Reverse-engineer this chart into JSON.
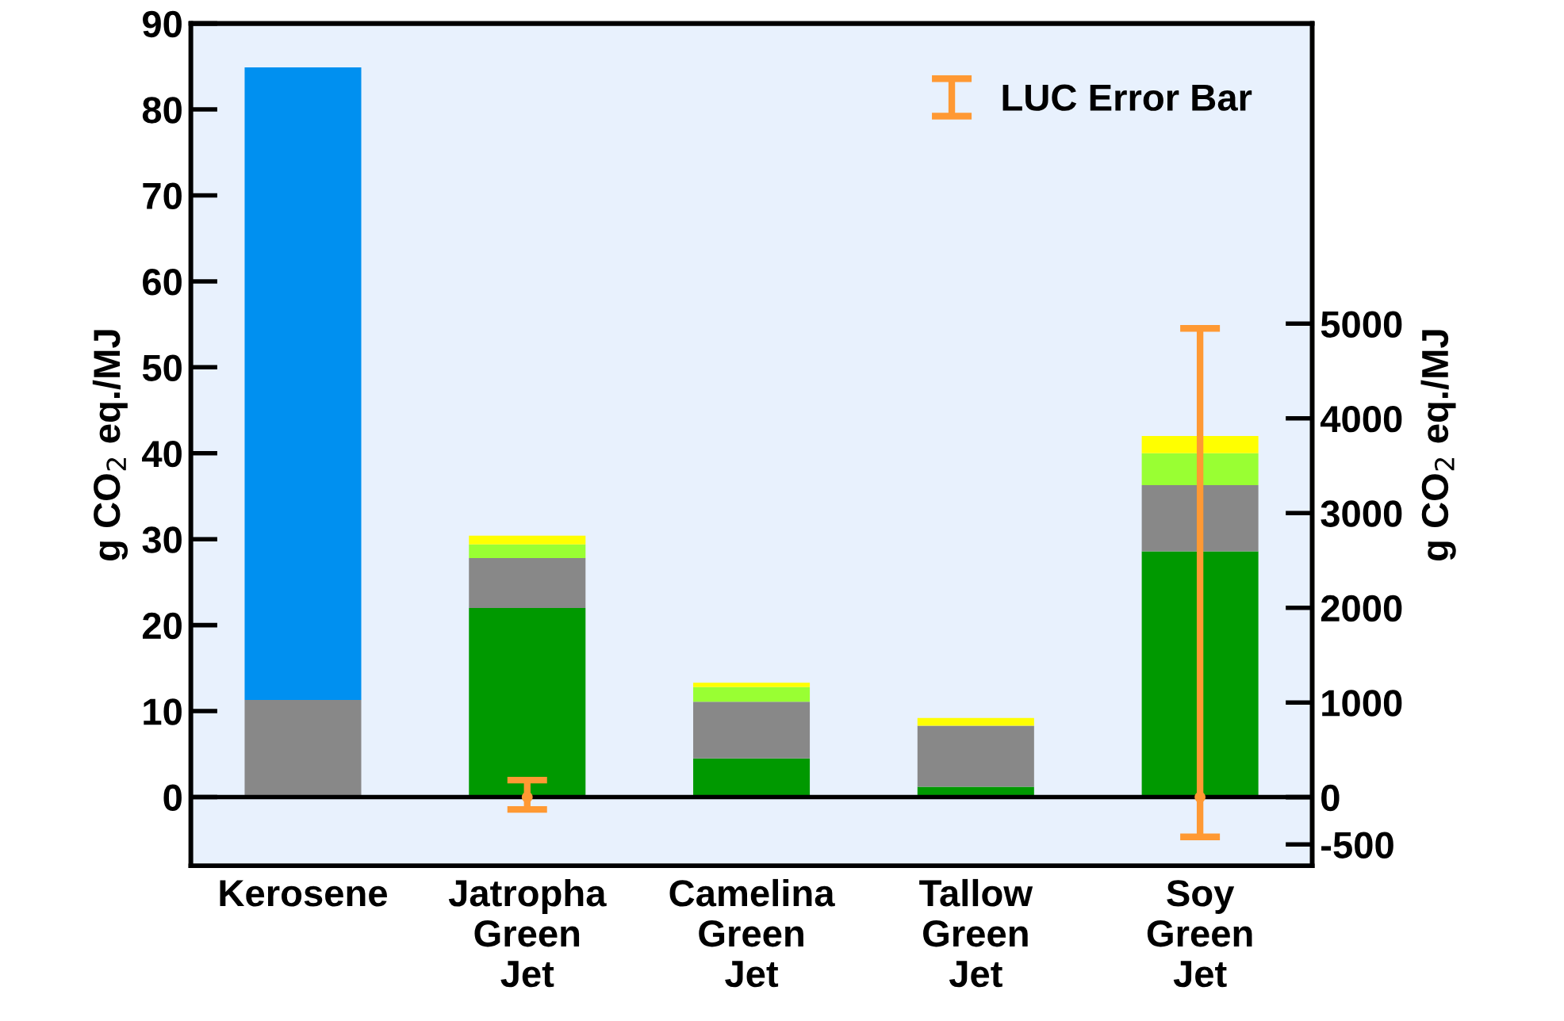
{
  "chart_data": {
    "type": "bar",
    "stacked": true,
    "categories": [
      "Kerosene",
      "Jatropha\nGreen\nJet",
      "Camelina\nGreen\nJet",
      "Tallow\nGreen\nJet",
      "Soy\nGreen\nJet"
    ],
    "ylabel": "g CO$_{2}$ eq./MJ",
    "y2label": "g CO$_{2}$ eq./MJ",
    "ylim": [
      -8,
      90
    ],
    "yticks": [
      0,
      10,
      20,
      30,
      40,
      50,
      60,
      70,
      80,
      90
    ],
    "y2lim": [
      -725,
      8170
    ],
    "y2ticks": [
      -500,
      0,
      1000,
      2000,
      3000,
      4000,
      5000
    ],
    "series": [
      {
        "color": "#009900",
        "values": [
          null,
          22.0,
          4.5,
          1.2,
          28.6
        ]
      },
      {
        "color": "#888888",
        "values": [
          11.3,
          5.8,
          6.6,
          7.1,
          7.7
        ]
      },
      {
        "color": "#0090f0",
        "values": [
          73.6,
          null,
          null,
          null,
          null
        ]
      },
      {
        "color": "#99ff33",
        "values": [
          null,
          1.6,
          1.7,
          null,
          3.7
        ]
      },
      {
        "color": "#ffff00",
        "values": [
          null,
          1.0,
          0.5,
          0.9,
          2.0
        ]
      },
      {
        "name": "LUC Error Bar",
        "type": "scatter",
        "axis": "y2",
        "marker": "circle",
        "color": "#ff9933",
        "values": [
          null,
          0,
          null,
          null,
          0
        ],
        "errors": [
          null,
          [
            -130,
            180
          ],
          null,
          null,
          [
            -420,
            4950
          ]
        ]
      }
    ],
    "ref_lines": [
      {
        "axis": "y",
        "value": 0,
        "color": "#000000"
      }
    ],
    "legend": "top right",
    "grid": false
  }
}
